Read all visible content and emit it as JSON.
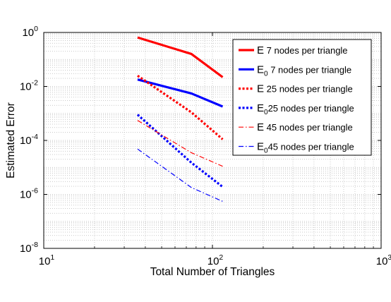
{
  "chart_data": {
    "type": "line",
    "xscale": "log",
    "yscale": "log",
    "xlim": [
      10,
      1000
    ],
    "ylim": [
      1e-08,
      1
    ],
    "grid": true,
    "legend_position": "top-right",
    "xlabel": "Total Number of Triangles",
    "ylabel": "Estimated Error",
    "xticks": [
      {
        "value": 10,
        "base": "10",
        "exp": "1"
      },
      {
        "value": 100,
        "base": "10",
        "exp": "2"
      },
      {
        "value": 1000,
        "base": "10",
        "exp": "3"
      }
    ],
    "yticks": [
      {
        "value": 1e-08,
        "base": "10",
        "exp": "-8"
      },
      {
        "value": 1e-06,
        "base": "10",
        "exp": "-6"
      },
      {
        "value": 0.0001,
        "base": "10",
        "exp": "-4"
      },
      {
        "value": 0.01,
        "base": "10",
        "exp": "-2"
      },
      {
        "value": 1,
        "base": "10",
        "exp": "0"
      }
    ],
    "x": [
      36,
      75,
      115
    ],
    "series": [
      {
        "name": "E   7 nodes per triangle",
        "symbol": "E",
        "sub": "",
        "text": "  7 nodes per triangle",
        "color": "#ff0000",
        "style": "solid",
        "width": "thick",
        "values": [
          0.65,
          0.16,
          0.022
        ]
      },
      {
        "name": "E0  7 nodes per triangle",
        "symbol": "E",
        "sub": "0",
        "text": "  7 nodes per triangle",
        "color": "#0000ff",
        "style": "solid",
        "width": "thick",
        "values": [
          0.018,
          0.0055,
          0.0018
        ]
      },
      {
        "name": "E 25 nodes per triangle",
        "symbol": "E",
        "sub": "",
        "text": " 25 nodes per triangle",
        "color": "#ff0000",
        "style": "dotted",
        "width": "thick",
        "values": [
          0.025,
          0.0011,
          0.00011
        ]
      },
      {
        "name": "E0 25 nodes per triangle",
        "symbol": "E",
        "sub": "0",
        "text": "25 nodes per triangle",
        "color": "#0000ff",
        "style": "dotted",
        "width": "thick",
        "values": [
          0.0009,
          1.5e-05,
          1.9e-06
        ]
      },
      {
        "name": "E 45 nodes per triangle",
        "symbol": "E",
        "sub": "",
        "text": " 45 nodes per triangle",
        "color": "#ff0000",
        "style": "dashdot",
        "width": "thin",
        "values": [
          0.00055,
          3.5e-05,
          1.1e-05
        ]
      },
      {
        "name": "E0 45 nodes per triangle",
        "symbol": "E",
        "sub": "0",
        "text": "45 nodes per triangle",
        "color": "#0000ff",
        "style": "dashdot",
        "width": "thin",
        "values": [
          4.8e-05,
          1.8e-06,
          5.5e-07
        ]
      }
    ]
  }
}
